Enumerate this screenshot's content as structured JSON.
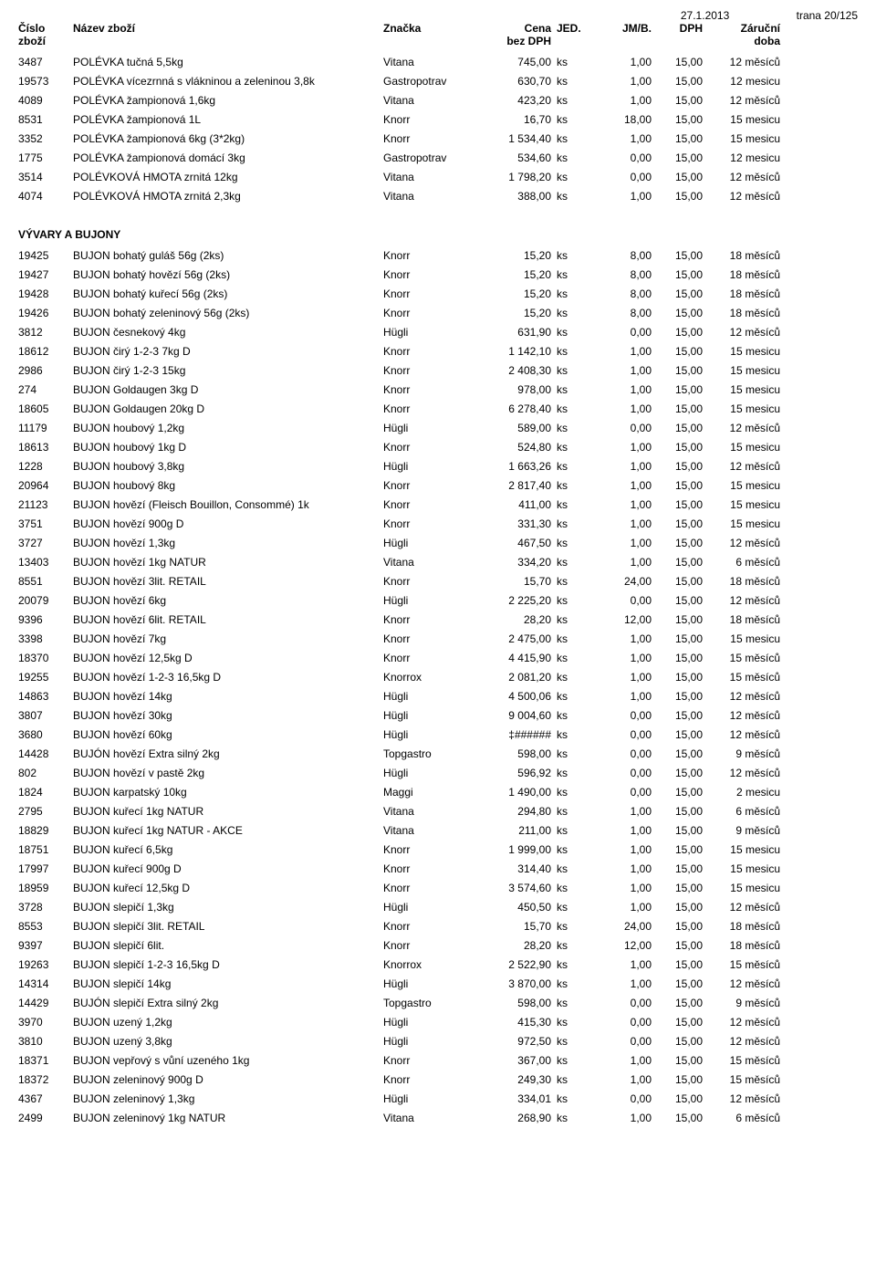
{
  "header": {
    "date": "27.1.2013",
    "page": "trana 20/125",
    "col_num": "Číslo",
    "col_num2": "zboží",
    "col_name": "Název zboží",
    "col_brand": "Značka",
    "col_price": "Cena",
    "col_price2": "bez DPH",
    "col_jed": "JED.",
    "col_jmb": "JM/B.",
    "col_dph": "DPH",
    "col_war": "Záruční",
    "col_war2": "doba"
  },
  "section2_title": "VÝVARY A BUJONY",
  "rows1": [
    {
      "n": "3487",
      "name": "POLÉVKA tučná 5,5kg",
      "brand": "Vitana",
      "price": "745,00",
      "jed": "ks",
      "jmb": "1,00",
      "dph": "15,00",
      "war": "12 měsíců"
    },
    {
      "n": "19573",
      "name": "POLÉVKA vícezrnná s vlákninou a zeleninou 3,8k",
      "brand": "Gastropotrav",
      "price": "630,70",
      "jed": "ks",
      "jmb": "1,00",
      "dph": "15,00",
      "war": "12 mesicu"
    },
    {
      "n": "4089",
      "name": "POLÉVKA žampionová 1,6kg",
      "brand": "Vitana",
      "price": "423,20",
      "jed": "ks",
      "jmb": "1,00",
      "dph": "15,00",
      "war": "12 měsíců"
    },
    {
      "n": "8531",
      "name": "POLÉVKA žampionová 1L",
      "brand": "Knorr",
      "price": "16,70",
      "jed": "ks",
      "jmb": "18,00",
      "dph": "15,00",
      "war": "15 mesicu"
    },
    {
      "n": "3352",
      "name": "POLÉVKA žampionová 6kg (3*2kg)",
      "brand": "Knorr",
      "price": "1 534,40",
      "jed": "ks",
      "jmb": "1,00",
      "dph": "15,00",
      "war": "15 mesicu"
    },
    {
      "n": "1775",
      "name": "POLÉVKA žampionová domácí 3kg",
      "brand": "Gastropotrav",
      "price": "534,60",
      "jed": "ks",
      "jmb": "0,00",
      "dph": "15,00",
      "war": "12 mesicu"
    },
    {
      "n": "3514",
      "name": "POLÉVKOVÁ HMOTA zrnitá 12kg",
      "brand": "Vitana",
      "price": "1 798,20",
      "jed": "ks",
      "jmb": "0,00",
      "dph": "15,00",
      "war": "12 měsíců"
    },
    {
      "n": "4074",
      "name": "POLÉVKOVÁ HMOTA zrnitá 2,3kg",
      "brand": "Vitana",
      "price": "388,00",
      "jed": "ks",
      "jmb": "1,00",
      "dph": "15,00",
      "war": "12 měsíců"
    }
  ],
  "rows2": [
    {
      "n": "19425",
      "name": "BUJON bohatý guláš 56g (2ks)",
      "brand": "Knorr",
      "price": "15,20",
      "jed": "ks",
      "jmb": "8,00",
      "dph": "15,00",
      "war": "18 měsíců"
    },
    {
      "n": "19427",
      "name": "BUJON bohatý hovězí 56g (2ks)",
      "brand": "Knorr",
      "price": "15,20",
      "jed": "ks",
      "jmb": "8,00",
      "dph": "15,00",
      "war": "18 měsíců"
    },
    {
      "n": "19428",
      "name": "BUJON bohatý kuřecí 56g (2ks)",
      "brand": "Knorr",
      "price": "15,20",
      "jed": "ks",
      "jmb": "8,00",
      "dph": "15,00",
      "war": "18 měsíců"
    },
    {
      "n": "19426",
      "name": "BUJON bohatý zeleninový 56g (2ks)",
      "brand": "Knorr",
      "price": "15,20",
      "jed": "ks",
      "jmb": "8,00",
      "dph": "15,00",
      "war": "18 měsíců"
    },
    {
      "n": "3812",
      "name": "BUJON česnekový 4kg",
      "brand": "Hügli",
      "price": "631,90",
      "jed": "ks",
      "jmb": "0,00",
      "dph": "15,00",
      "war": "12 měsíců"
    },
    {
      "n": "18612",
      "name": "BUJON čirý  1-2-3 7kg D",
      "brand": "Knorr",
      "price": "1 142,10",
      "jed": "ks",
      "jmb": "1,00",
      "dph": "15,00",
      "war": "15 mesicu"
    },
    {
      "n": "2986",
      "name": "BUJON čirý 1-2-3 15kg",
      "brand": "Knorr",
      "price": "2 408,30",
      "jed": "ks",
      "jmb": "1,00",
      "dph": "15,00",
      "war": "15 mesicu"
    },
    {
      "n": "274",
      "name": "BUJON Goldaugen  3kg D",
      "brand": "Knorr",
      "price": "978,00",
      "jed": "ks",
      "jmb": "1,00",
      "dph": "15,00",
      "war": "15 mesicu"
    },
    {
      "n": "18605",
      "name": "BUJON Goldaugen 20kg D",
      "brand": "Knorr",
      "price": "6 278,40",
      "jed": "ks",
      "jmb": "1,00",
      "dph": "15,00",
      "war": "15 mesicu"
    },
    {
      "n": "11179",
      "name": "BUJON houbový 1,2kg",
      "brand": "Hügli",
      "price": "589,00",
      "jed": "ks",
      "jmb": "0,00",
      "dph": "15,00",
      "war": "12 měsíců"
    },
    {
      "n": "18613",
      "name": "BUJON houbový 1kg D",
      "brand": "Knorr",
      "price": "524,80",
      "jed": "ks",
      "jmb": "1,00",
      "dph": "15,00",
      "war": "15 mesicu"
    },
    {
      "n": "1228",
      "name": "BUJON houbový 3,8kg",
      "brand": "Hügli",
      "price": "1 663,26",
      "jed": "ks",
      "jmb": "1,00",
      "dph": "15,00",
      "war": "12 měsíců"
    },
    {
      "n": "20964",
      "name": "BUJON houbový 8kg",
      "brand": "Knorr",
      "price": "2 817,40",
      "jed": "ks",
      "jmb": "1,00",
      "dph": "15,00",
      "war": "15 mesicu"
    },
    {
      "n": "21123",
      "name": "BUJON hovězí  (Fleisch Bouillon, Consommé) 1k",
      "brand": "Knorr",
      "price": "411,00",
      "jed": "ks",
      "jmb": "1,00",
      "dph": "15,00",
      "war": "15 mesicu"
    },
    {
      "n": "3751",
      "name": "BUJON hovězí  900g D",
      "brand": "Knorr",
      "price": "331,30",
      "jed": "ks",
      "jmb": "1,00",
      "dph": "15,00",
      "war": "15 mesicu"
    },
    {
      "n": "3727",
      "name": "BUJON hovězí  1,3kg",
      "brand": "Hügli",
      "price": "467,50",
      "jed": "ks",
      "jmb": "1,00",
      "dph": "15,00",
      "war": "12 měsíců"
    },
    {
      "n": "13403",
      "name": "BUJON hovězí  1kg NATUR",
      "brand": "Vitana",
      "price": "334,20",
      "jed": "ks",
      "jmb": "1,00",
      "dph": "15,00",
      "war": "6 měsíců"
    },
    {
      "n": "8551",
      "name": "BUJON hovězí  3lit. RETAIL",
      "brand": "Knorr",
      "price": "15,70",
      "jed": "ks",
      "jmb": "24,00",
      "dph": "15,00",
      "war": "18 měsíců"
    },
    {
      "n": "20079",
      "name": "BUJON hovězí  6kg",
      "brand": "Hügli",
      "price": "2 225,20",
      "jed": "ks",
      "jmb": "0,00",
      "dph": "15,00",
      "war": "12 měsíců"
    },
    {
      "n": "9396",
      "name": "BUJON hovězí  6lit. RETAIL",
      "brand": "Knorr",
      "price": "28,20",
      "jed": "ks",
      "jmb": "12,00",
      "dph": "15,00",
      "war": "18 měsíců"
    },
    {
      "n": "3398",
      "name": "BUJON hovězí  7kg",
      "brand": "Knorr",
      "price": "2 475,00",
      "jed": "ks",
      "jmb": "1,00",
      "dph": "15,00",
      "war": "15 mesicu"
    },
    {
      "n": "18370",
      "name": "BUJON hovězí 12,5kg D",
      "brand": "Knorr",
      "price": "4 415,90",
      "jed": "ks",
      "jmb": "1,00",
      "dph": "15,00",
      "war": "15 měsíců"
    },
    {
      "n": "19255",
      "name": "BUJON hovězí 1-2-3 16,5kg D",
      "brand": "Knorrox",
      "price": "2 081,20",
      "jed": "ks",
      "jmb": "1,00",
      "dph": "15,00",
      "war": "15 měsíců"
    },
    {
      "n": "14863",
      "name": "BUJON hovězí 14kg",
      "brand": "Hügli",
      "price": "4 500,06",
      "jed": "ks",
      "jmb": "1,00",
      "dph": "15,00",
      "war": "12 měsíců"
    },
    {
      "n": "3807",
      "name": "BUJON hovězí 30kg",
      "brand": "Hügli",
      "price": "9 004,60",
      "jed": "ks",
      "jmb": "0,00",
      "dph": "15,00",
      "war": "12 měsíců"
    },
    {
      "n": "3680",
      "name": "BUJON hovězí 60kg",
      "brand": "Hügli",
      "price": "‡######",
      "jed": "ks",
      "jmb": "0,00",
      "dph": "15,00",
      "war": "12 měsíců"
    },
    {
      "n": "14428",
      "name": "BUJÓN hovězí Extra silný 2kg",
      "brand": "Topgastro",
      "price": "598,00",
      "jed": "ks",
      "jmb": "0,00",
      "dph": "15,00",
      "war": "9 měsíců"
    },
    {
      "n": "802",
      "name": "BUJON hovězí v pastě 2kg",
      "brand": "Hügli",
      "price": "596,92",
      "jed": "ks",
      "jmb": "0,00",
      "dph": "15,00",
      "war": "12 měsíců"
    },
    {
      "n": "1824",
      "name": "BUJON karpatský 10kg",
      "brand": "Maggi",
      "price": "1 490,00",
      "jed": "ks",
      "jmb": "0,00",
      "dph": "15,00",
      "war": "2 mesicu"
    },
    {
      "n": "2795",
      "name": "BUJON kuřecí  1kg NATUR",
      "brand": "Vitana",
      "price": "294,80",
      "jed": "ks",
      "jmb": "1,00",
      "dph": "15,00",
      "war": "6 měsíců"
    },
    {
      "n": "18829",
      "name": "BUJON kuřecí  1kg NATUR - AKCE",
      "brand": "Vitana",
      "price": "211,00",
      "jed": "ks",
      "jmb": "1,00",
      "dph": "15,00",
      "war": "9 měsíců"
    },
    {
      "n": "18751",
      "name": "BUJON kuřecí  6,5kg",
      "brand": "Knorr",
      "price": "1 999,00",
      "jed": "ks",
      "jmb": "1,00",
      "dph": "15,00",
      "war": "15 mesicu"
    },
    {
      "n": "17997",
      "name": "BUJON kuřecí  900g D",
      "brand": "Knorr",
      "price": "314,40",
      "jed": "ks",
      "jmb": "1,00",
      "dph": "15,00",
      "war": "15 mesicu"
    },
    {
      "n": "18959",
      "name": "BUJON kuřecí 12,5kg D",
      "brand": "Knorr",
      "price": "3 574,60",
      "jed": "ks",
      "jmb": "1,00",
      "dph": "15,00",
      "war": "15 mesicu"
    },
    {
      "n": "3728",
      "name": "BUJON slepičí  1,3kg",
      "brand": "Hügli",
      "price": "450,50",
      "jed": "ks",
      "jmb": "1,00",
      "dph": "15,00",
      "war": "12 měsíců"
    },
    {
      "n": "8553",
      "name": "BUJON slepičí  3lit. RETAIL",
      "brand": "Knorr",
      "price": "15,70",
      "jed": "ks",
      "jmb": "24,00",
      "dph": "15,00",
      "war": "18 měsíců"
    },
    {
      "n": "9397",
      "name": "BUJON slepičí  6lit.",
      "brand": "Knorr",
      "price": "28,20",
      "jed": "ks",
      "jmb": "12,00",
      "dph": "15,00",
      "war": "18 měsíců"
    },
    {
      "n": "19263",
      "name": "BUJON slepičí 1-2-3 16,5kg D",
      "brand": "Knorrox",
      "price": "2 522,90",
      "jed": "ks",
      "jmb": "1,00",
      "dph": "15,00",
      "war": "15 měsíců"
    },
    {
      "n": "14314",
      "name": "BUJON slepičí 14kg",
      "brand": "Hügli",
      "price": "3 870,00",
      "jed": "ks",
      "jmb": "1,00",
      "dph": "15,00",
      "war": "12 měsíců"
    },
    {
      "n": "14429",
      "name": "BUJÓN slepičí Extra silný 2kg",
      "brand": "Topgastro",
      "price": "598,00",
      "jed": "ks",
      "jmb": "0,00",
      "dph": "15,00",
      "war": "9 měsíců"
    },
    {
      "n": "3970",
      "name": "BUJON uzený 1,2kg",
      "brand": "Hügli",
      "price": "415,30",
      "jed": "ks",
      "jmb": "0,00",
      "dph": "15,00",
      "war": "12 měsíců"
    },
    {
      "n": "3810",
      "name": "BUJON uzený 3,8kg",
      "brand": "Hügli",
      "price": "972,50",
      "jed": "ks",
      "jmb": "0,00",
      "dph": "15,00",
      "war": "12 měsíců"
    },
    {
      "n": "18371",
      "name": "BUJON vepřový s vůní uzeného 1kg",
      "brand": "Knorr",
      "price": "367,00",
      "jed": "ks",
      "jmb": "1,00",
      "dph": "15,00",
      "war": "15 měsíců"
    },
    {
      "n": "18372",
      "name": "BUJON zeleninový  900g D",
      "brand": "Knorr",
      "price": "249,30",
      "jed": "ks",
      "jmb": "1,00",
      "dph": "15,00",
      "war": "15 měsíců"
    },
    {
      "n": "4367",
      "name": "BUJON zeleninový  1,3kg",
      "brand": "Hügli",
      "price": "334,01",
      "jed": "ks",
      "jmb": "0,00",
      "dph": "15,00",
      "war": "12 měsíců"
    },
    {
      "n": "2499",
      "name": "BUJON zeleninový  1kg NATUR",
      "brand": "Vitana",
      "price": "268,90",
      "jed": "ks",
      "jmb": "1,00",
      "dph": "15,00",
      "war": "6 měsíců"
    }
  ]
}
